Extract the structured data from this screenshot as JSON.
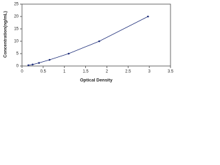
{
  "chart_data": {
    "type": "line",
    "x_label": "Optical Density",
    "y_label": "Concentration(ng/mL)",
    "x": [
      0.15,
      0.25,
      0.4,
      0.65,
      1.1,
      1.82,
      2.97
    ],
    "series": [
      {
        "color": "#1f2f7a",
        "values": [
          0.3,
          0.6,
          1.25,
          2.5,
          5,
          10,
          20
        ]
      }
    ],
    "xlim": [
      0,
      3.5
    ],
    "xticks": [
      0,
      0.5,
      1,
      1.5,
      2,
      2.5,
      3,
      3.5
    ],
    "ylim": [
      0,
      25
    ],
    "yticks": [
      0,
      5,
      10,
      15,
      20,
      25
    ],
    "markers": true
  }
}
